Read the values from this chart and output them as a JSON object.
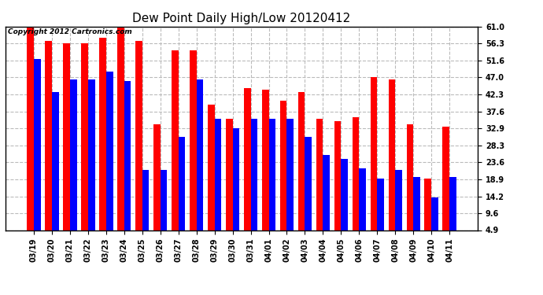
{
  "title": "Dew Point Daily High/Low 20120412",
  "copyright_text": "Copyright 2012 Cartronics.com",
  "dates": [
    "03/19",
    "03/20",
    "03/21",
    "03/22",
    "03/23",
    "03/24",
    "03/25",
    "03/26",
    "03/27",
    "03/28",
    "03/29",
    "03/30",
    "03/31",
    "04/01",
    "04/02",
    "04/03",
    "04/04",
    "04/05",
    "04/06",
    "04/07",
    "04/08",
    "04/09",
    "04/10",
    "04/11"
  ],
  "high_values": [
    61.0,
    57.0,
    56.3,
    56.3,
    58.0,
    61.0,
    57.0,
    34.0,
    54.5,
    54.5,
    39.5,
    35.5,
    44.0,
    43.5,
    40.5,
    43.0,
    35.5,
    35.0,
    36.0,
    47.0,
    46.5,
    34.0,
    19.0,
    33.5
  ],
  "low_values": [
    52.0,
    43.0,
    46.5,
    46.5,
    48.5,
    46.0,
    21.5,
    21.5,
    30.5,
    46.5,
    35.5,
    33.0,
    35.5,
    35.5,
    35.5,
    30.5,
    25.5,
    24.5,
    22.0,
    19.0,
    21.5,
    19.5,
    14.0,
    19.5
  ],
  "high_color": "#ff0000",
  "low_color": "#0000ff",
  "bg_color": "#ffffff",
  "plot_bg_color": "#ffffff",
  "ylim_min": 4.9,
  "ylim_max": 61.0,
  "yticks": [
    4.9,
    9.6,
    14.2,
    18.9,
    23.6,
    28.3,
    32.9,
    37.6,
    42.3,
    47.0,
    51.6,
    56.3,
    61.0
  ],
  "grid_color": "#bbbbbb",
  "title_fontsize": 11,
  "tick_fontsize": 7,
  "copyright_fontsize": 6.5,
  "bar_width": 0.38
}
